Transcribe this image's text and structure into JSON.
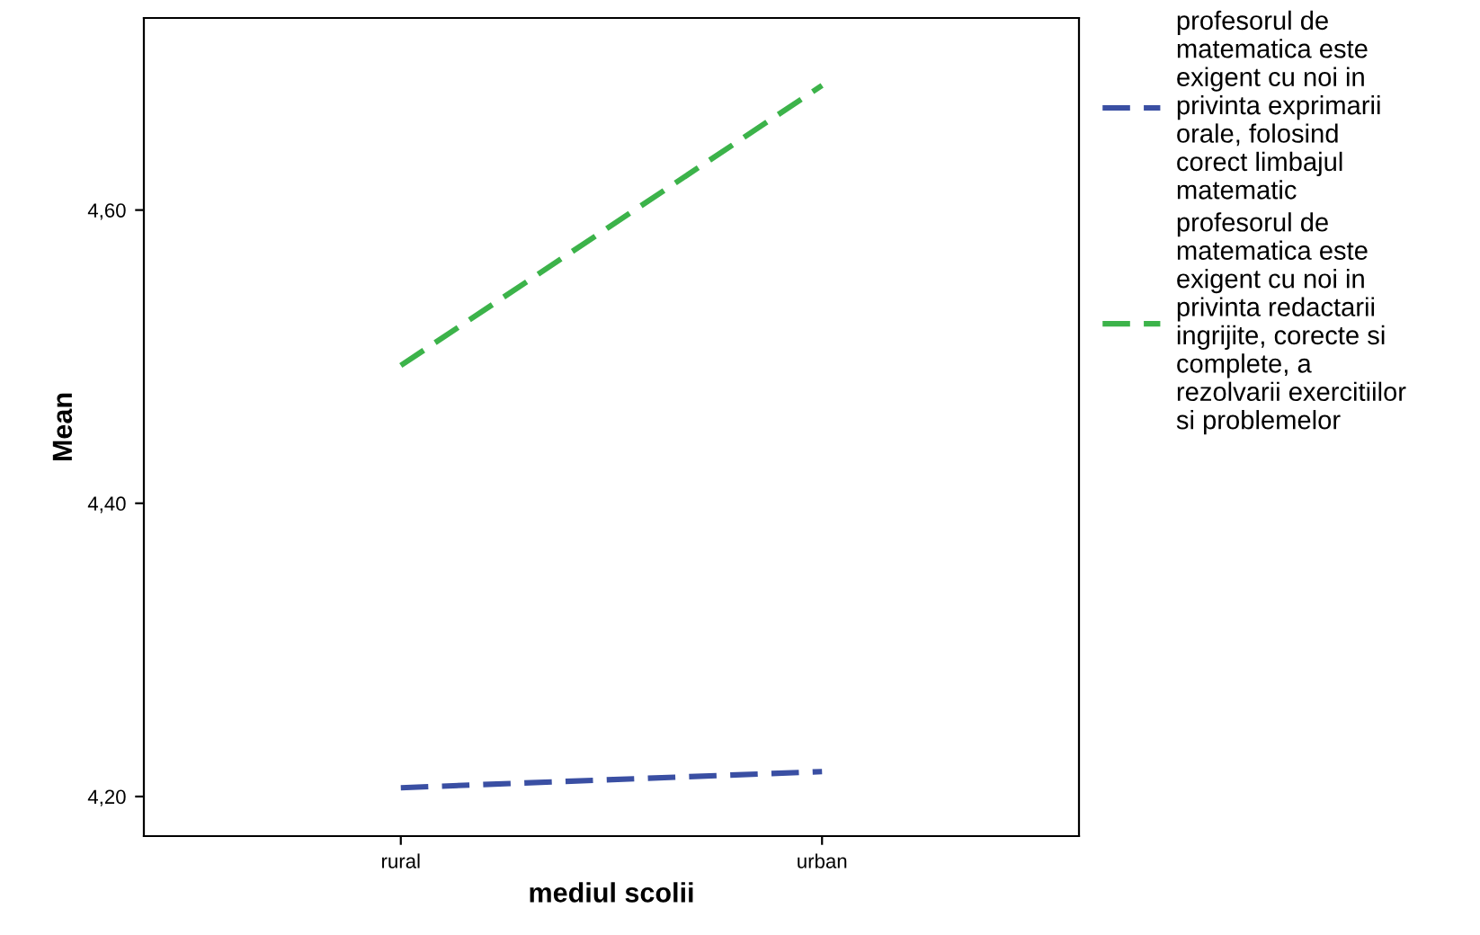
{
  "chart_data": {
    "type": "line",
    "xlabel": "mediul scolii",
    "ylabel": "Mean",
    "categories": [
      "rural",
      "urban"
    ],
    "series": [
      {
        "name": "profesorul de\nmatematica este\nexigent cu noi in\nprivinta exprimarii\norale, folosind\ncorect limbajul\nmatematic",
        "color": "#3a4fa3",
        "values": [
          4.206,
          4.217
        ]
      },
      {
        "name": "profesorul de\nmatematica este\nexigent cu noi in\nprivinta redactarii\ningrijite, corecte si\ncomplete, a\nrezolvarii exercitiilor\nsi problemelor",
        "color": "#3cb34a",
        "values": [
          4.494,
          4.685
        ]
      }
    ],
    "ylim": [
      4.173,
      4.731
    ],
    "yticks": [
      {
        "value": 4.2,
        "label": "4,20"
      },
      {
        "value": 4.4,
        "label": "4,40"
      },
      {
        "value": 4.6,
        "label": "4,60"
      }
    ],
    "grid": false,
    "legend": "right",
    "marker": "none",
    "line_style": "dashed"
  }
}
